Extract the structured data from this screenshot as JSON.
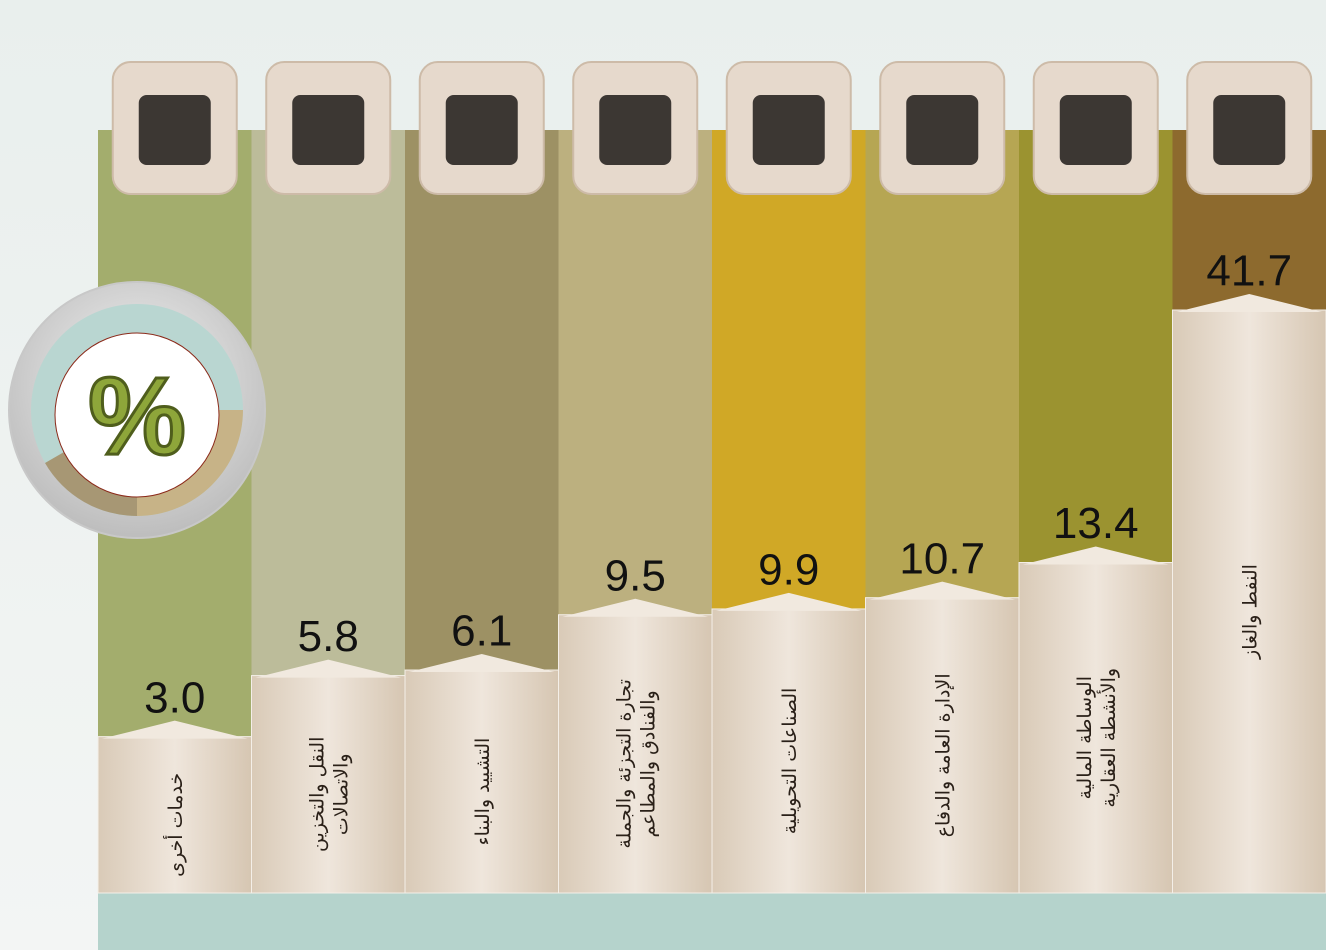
{
  "chart_data": {
    "type": "bar",
    "categories": [
      "خدمات أخرى",
      "النقل والتخزين\nوالاتصالات",
      "التشييد والبناء",
      "تجارة التجزئة والجملة\nوالفنادق والمطاعم",
      "الصناعات التحويلية",
      "الإدارة العامة والدفاع",
      "الوساطة المالية\nوالأنشطة العقارية",
      "النفط والغاز"
    ],
    "values": [
      3.0,
      5.8,
      6.1,
      9.5,
      9.9,
      10.7,
      13.4,
      41.7
    ],
    "value_labels": [
      "3.0",
      "5.8",
      "6.1",
      "9.5",
      "9.9",
      "10.7",
      "13.4",
      "41.7"
    ],
    "colors": [
      "#a3ad6d",
      "#bcbc9a",
      "#9d9164",
      "#bcb07f",
      "#d0a826",
      "#b6a653",
      "#9b9330",
      "#8d6a2e"
    ],
    "unit_badge": "%"
  }
}
